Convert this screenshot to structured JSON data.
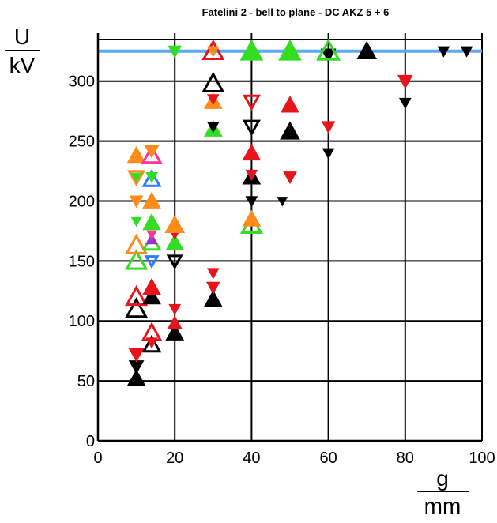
{
  "chart_data": {
    "type": "scatter",
    "title": "Fatelini 2 - bell to plane - DC AKZ 5 + 6",
    "ylabel": {
      "numerator": "U",
      "denominator": "kV"
    },
    "xlabel": {
      "numerator": "g",
      "denominator": "mm"
    },
    "xlim": [
      0,
      100
    ],
    "ylim": [
      0,
      340
    ],
    "x_ticks": [
      0,
      20,
      40,
      60,
      80,
      100
    ],
    "y_ticks": [
      0,
      50,
      100,
      150,
      200,
      250,
      300
    ],
    "x_tick_labels": [
      "0",
      "20",
      "40",
      "60",
      "80",
      "100"
    ],
    "y_tick_labels": [
      "0",
      "50",
      "100",
      "150",
      "200",
      "250",
      "300"
    ],
    "grid": true,
    "reference_line": {
      "y": 325,
      "color": "#5aaaf0"
    },
    "colors": {
      "red": "#e8141c",
      "black": "#000000",
      "orange": "#ff8c1a",
      "green": "#33dd22",
      "blue": "#2a7fff",
      "pink": "#ff3399",
      "purple": "#9933cc"
    },
    "markers": [
      {
        "x": 10,
        "y": 52,
        "shape": "up",
        "fill": true,
        "color": "black",
        "size": 22
      },
      {
        "x": 10,
        "y": 62,
        "shape": "down",
        "fill": true,
        "color": "black",
        "size": 18
      },
      {
        "x": 10,
        "y": 72,
        "shape": "down",
        "fill": true,
        "color": "red",
        "size": 18
      },
      {
        "x": 10,
        "y": 110,
        "shape": "up",
        "fill": false,
        "color": "black",
        "size": 24
      },
      {
        "x": 10,
        "y": 120,
        "shape": "up",
        "fill": false,
        "color": "red",
        "size": 24
      },
      {
        "x": 10,
        "y": 150,
        "shape": "up",
        "fill": false,
        "color": "green",
        "size": 24
      },
      {
        "x": 10,
        "y": 163,
        "shape": "up",
        "fill": false,
        "color": "orange",
        "size": 24
      },
      {
        "x": 10,
        "y": 183,
        "shape": "down",
        "fill": true,
        "color": "green",
        "size": 12
      },
      {
        "x": 10,
        "y": 200,
        "shape": "down",
        "fill": true,
        "color": "orange",
        "size": 16
      },
      {
        "x": 10,
        "y": 220,
        "shape": "down",
        "fill": false,
        "color": "orange",
        "size": 18
      },
      {
        "x": 10,
        "y": 220,
        "shape": "down",
        "fill": true,
        "color": "green",
        "size": 12
      },
      {
        "x": 10,
        "y": 238,
        "shape": "up",
        "fill": true,
        "color": "orange",
        "size": 22
      },
      {
        "x": 14,
        "y": 80,
        "shape": "up",
        "fill": false,
        "color": "black",
        "size": 20
      },
      {
        "x": 14,
        "y": 82,
        "shape": "down",
        "fill": true,
        "color": "red",
        "size": 14
      },
      {
        "x": 14,
        "y": 90,
        "shape": "up",
        "fill": false,
        "color": "red",
        "size": 22
      },
      {
        "x": 14,
        "y": 120,
        "shape": "up",
        "fill": true,
        "color": "black",
        "size": 22
      },
      {
        "x": 14,
        "y": 128,
        "shape": "up",
        "fill": true,
        "color": "red",
        "size": 22
      },
      {
        "x": 14,
        "y": 150,
        "shape": "down",
        "fill": false,
        "color": "blue",
        "size": 14
      },
      {
        "x": 14,
        "y": 165,
        "shape": "up",
        "fill": false,
        "color": "green",
        "size": 20
      },
      {
        "x": 14,
        "y": 168,
        "shape": "up",
        "fill": true,
        "color": "purple",
        "size": 14
      },
      {
        "x": 14,
        "y": 172,
        "shape": "down",
        "fill": true,
        "color": "pink",
        "size": 12
      },
      {
        "x": 14,
        "y": 182,
        "shape": "up",
        "fill": true,
        "color": "green",
        "size": 22
      },
      {
        "x": 14,
        "y": 200,
        "shape": "up",
        "fill": true,
        "color": "orange",
        "size": 22
      },
      {
        "x": 14,
        "y": 218,
        "shape": "up",
        "fill": false,
        "color": "blue",
        "size": 20
      },
      {
        "x": 14,
        "y": 220,
        "shape": "down",
        "fill": true,
        "color": "green",
        "size": 14
      },
      {
        "x": 14,
        "y": 238,
        "shape": "up",
        "fill": false,
        "color": "pink",
        "size": 22
      },
      {
        "x": 14,
        "y": 242,
        "shape": "down",
        "fill": true,
        "color": "orange",
        "size": 18
      },
      {
        "x": 20,
        "y": 90,
        "shape": "up",
        "fill": true,
        "color": "black",
        "size": 22
      },
      {
        "x": 20,
        "y": 98,
        "shape": "up",
        "fill": true,
        "color": "red",
        "size": 18
      },
      {
        "x": 20,
        "y": 110,
        "shape": "down",
        "fill": true,
        "color": "red",
        "size": 14
      },
      {
        "x": 20,
        "y": 150,
        "shape": "down",
        "fill": false,
        "color": "black",
        "size": 16
      },
      {
        "x": 20,
        "y": 165,
        "shape": "up",
        "fill": true,
        "color": "green",
        "size": 22
      },
      {
        "x": 20,
        "y": 172,
        "shape": "down",
        "fill": true,
        "color": "red",
        "size": 12
      },
      {
        "x": 20,
        "y": 180,
        "shape": "up",
        "fill": true,
        "color": "orange",
        "size": 24
      },
      {
        "x": 20,
        "y": 325,
        "shape": "down",
        "fill": true,
        "color": "green",
        "size": 16
      },
      {
        "x": 30,
        "y": 118,
        "shape": "up",
        "fill": true,
        "color": "black",
        "size": 22
      },
      {
        "x": 30,
        "y": 128,
        "shape": "down",
        "fill": true,
        "color": "red",
        "size": 16
      },
      {
        "x": 30,
        "y": 140,
        "shape": "down",
        "fill": true,
        "color": "red",
        "size": 14
      },
      {
        "x": 30,
        "y": 260,
        "shape": "up",
        "fill": true,
        "color": "green",
        "size": 22
      },
      {
        "x": 30,
        "y": 262,
        "shape": "down",
        "fill": true,
        "color": "black",
        "size": 14
      },
      {
        "x": 30,
        "y": 283,
        "shape": "up",
        "fill": true,
        "color": "orange",
        "size": 22
      },
      {
        "x": 30,
        "y": 285,
        "shape": "down",
        "fill": true,
        "color": "red",
        "size": 14
      },
      {
        "x": 30,
        "y": 298,
        "shape": "up",
        "fill": false,
        "color": "black",
        "size": 24
      },
      {
        "x": 30,
        "y": 325,
        "shape": "up",
        "fill": false,
        "color": "red",
        "size": 24
      },
      {
        "x": 30,
        "y": 325,
        "shape": "down",
        "fill": true,
        "color": "orange",
        "size": 14
      },
      {
        "x": 40,
        "y": 180,
        "shape": "up",
        "fill": false,
        "color": "green",
        "size": 24
      },
      {
        "x": 40,
        "y": 185,
        "shape": "up",
        "fill": true,
        "color": "orange",
        "size": 22
      },
      {
        "x": 40,
        "y": 200,
        "shape": "down",
        "fill": true,
        "color": "black",
        "size": 14
      },
      {
        "x": 40,
        "y": 220,
        "shape": "up",
        "fill": true,
        "color": "black",
        "size": 22
      },
      {
        "x": 40,
        "y": 222,
        "shape": "down",
        "fill": true,
        "color": "red",
        "size": 14
      },
      {
        "x": 40,
        "y": 240,
        "shape": "up",
        "fill": true,
        "color": "red",
        "size": 22
      },
      {
        "x": 40,
        "y": 262,
        "shape": "down",
        "fill": false,
        "color": "black",
        "size": 18
      },
      {
        "x": 40,
        "y": 283,
        "shape": "down",
        "fill": false,
        "color": "red",
        "size": 18
      },
      {
        "x": 40,
        "y": 325,
        "shape": "up",
        "fill": true,
        "color": "green",
        "size": 28
      },
      {
        "x": 48,
        "y": 200,
        "shape": "down",
        "fill": true,
        "color": "black",
        "size": 12
      },
      {
        "x": 50,
        "y": 220,
        "shape": "down",
        "fill": true,
        "color": "red",
        "size": 16
      },
      {
        "x": 50,
        "y": 258,
        "shape": "up",
        "fill": true,
        "color": "black",
        "size": 24
      },
      {
        "x": 50,
        "y": 280,
        "shape": "up",
        "fill": true,
        "color": "red",
        "size": 22
      },
      {
        "x": 50,
        "y": 325,
        "shape": "up",
        "fill": true,
        "color": "green",
        "size": 28
      },
      {
        "x": 60,
        "y": 240,
        "shape": "down",
        "fill": true,
        "color": "black",
        "size": 14
      },
      {
        "x": 60,
        "y": 262,
        "shape": "down",
        "fill": true,
        "color": "red",
        "size": 16
      },
      {
        "x": 60,
        "y": 322,
        "shape": "down",
        "fill": true,
        "color": "black",
        "size": 18
      },
      {
        "x": 60,
        "y": 325,
        "shape": "up",
        "fill": false,
        "color": "green",
        "size": 26
      },
      {
        "x": 70,
        "y": 325,
        "shape": "up",
        "fill": true,
        "color": "black",
        "size": 24
      },
      {
        "x": 80,
        "y": 282,
        "shape": "down",
        "fill": true,
        "color": "black",
        "size": 14
      },
      {
        "x": 80,
        "y": 300,
        "shape": "down",
        "fill": true,
        "color": "red",
        "size": 18
      },
      {
        "x": 90,
        "y": 325,
        "shape": "down",
        "fill": true,
        "color": "black",
        "size": 14
      },
      {
        "x": 96,
        "y": 325,
        "shape": "down",
        "fill": true,
        "color": "black",
        "size": 14
      }
    ]
  }
}
